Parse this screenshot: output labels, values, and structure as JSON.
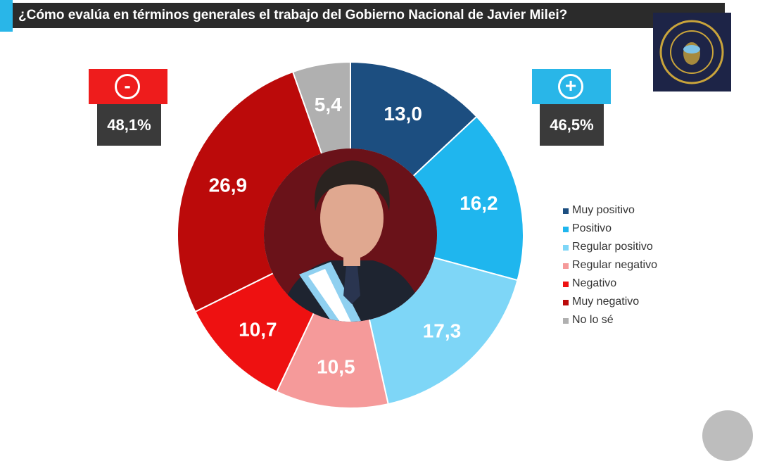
{
  "chart_data": {
    "type": "pie",
    "title": "¿Cómo evalúa en términos generales el trabajo del Gobierno Nacional de Javier Milei?",
    "categories": [
      "Muy positivo",
      "Positivo",
      "Regular positivo",
      "Regular negativo",
      "Negativo",
      "Muy negativo",
      "No lo sé"
    ],
    "values": [
      13.0,
      16.2,
      17.3,
      10.5,
      10.7,
      26.9,
      5.4
    ],
    "value_labels": [
      "13,0",
      "16,2",
      "17,3",
      "10,5",
      "10,7",
      "26,9",
      "5,4"
    ],
    "colors": [
      "#1c4e80",
      "#1fb6ee",
      "#7ed6f7",
      "#f59a9a",
      "#ee1111",
      "#bb0a0a",
      "#b0b0b0"
    ],
    "legend_position": "right",
    "donut": true
  },
  "totals": {
    "negative": {
      "sign": "-",
      "value": "48,1%",
      "color": "#ee1c1c"
    },
    "positive": {
      "sign": "+",
      "value": "46,5%",
      "color": "#29b6e8"
    }
  },
  "icons": {
    "center": "portrait-photo",
    "seal": "seal-icon"
  }
}
